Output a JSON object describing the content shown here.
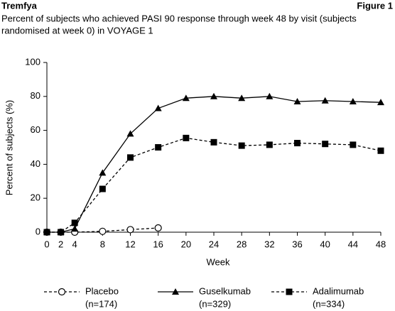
{
  "chart_data": {
    "type": "line",
    "header": "Tremfya",
    "figure_label": "Figure 1",
    "title_lines": [
      "Percent of subjects who achieved PASI 90 response through week 48 by visit (subjects",
      "randomised at week 0) in VOYAGE 1"
    ],
    "x_label": "Week",
    "y_label": "Percent of subjects (%)",
    "xlim": [
      0,
      48
    ],
    "xticks": [
      0,
      2,
      4,
      8,
      12,
      16,
      20,
      24,
      28,
      32,
      36,
      40,
      44,
      48
    ],
    "ylim": [
      0,
      100
    ],
    "yticks": [
      0,
      20,
      40,
      60,
      80,
      100
    ],
    "series": [
      {
        "name": "Placebo",
        "n_label": "(n=174)",
        "color": "#000000",
        "dash": true,
        "marker": "circle",
        "x": [
          0,
          2,
          4,
          8,
          12,
          16
        ],
        "values": [
          0,
          0,
          0,
          0.5,
          1.5,
          2.5
        ]
      },
      {
        "name": "Guselkumab",
        "n_label": "(n=329)",
        "color": "#000000",
        "dash": false,
        "marker": "triangle",
        "x": [
          0,
          2,
          4,
          8,
          12,
          16,
          20,
          24,
          28,
          32,
          36,
          40,
          44,
          48
        ],
        "values": [
          0,
          0,
          2,
          35,
          58,
          73,
          79,
          80,
          79,
          80,
          77,
          77.5,
          77,
          76.5
        ]
      },
      {
        "name": "Adalimumab",
        "n_label": "(n=334)",
        "color": "#000000",
        "dash": true,
        "marker": "square",
        "x": [
          0,
          2,
          4,
          8,
          12,
          16,
          20,
          24,
          28,
          32,
          36,
          40,
          44,
          48
        ],
        "values": [
          0,
          0,
          5.5,
          25.5,
          44,
          50,
          55.5,
          53,
          51,
          51.5,
          52.5,
          52,
          51.5,
          48
        ]
      }
    ]
  }
}
